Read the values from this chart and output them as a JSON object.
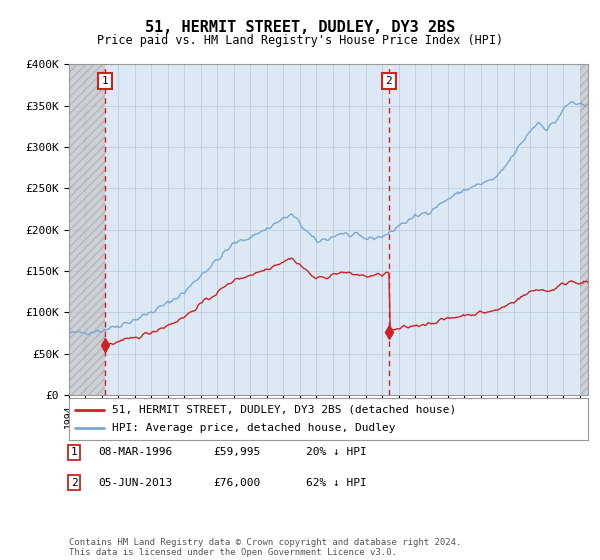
{
  "title": "51, HERMIT STREET, DUDLEY, DY3 2BS",
  "subtitle": "Price paid vs. HM Land Registry's House Price Index (HPI)",
  "footer": "Contains HM Land Registry data © Crown copyright and database right 2024.\nThis data is licensed under the Open Government Licence v3.0.",
  "legend_line1": "51, HERMIT STREET, DUDLEY, DY3 2BS (detached house)",
  "legend_line2": "HPI: Average price, detached house, Dudley",
  "annotation1_date": "08-MAR-1996",
  "annotation1_price": "£59,995",
  "annotation1_hpi": "20% ↓ HPI",
  "annotation2_date": "05-JUN-2013",
  "annotation2_price": "£76,000",
  "annotation2_hpi": "62% ↓ HPI",
  "hpi_color": "#7aa8d0",
  "price_color": "#cc2222",
  "background_plot": "#dce9f5",
  "hatch_color": "#c8c8c8",
  "grid_color": "#b8c8d8",
  "ann_box_color": "#cc2222",
  "ylim": [
    0,
    400000
  ],
  "yticks": [
    0,
    50000,
    100000,
    150000,
    200000,
    250000,
    300000,
    350000,
    400000
  ],
  "ytick_labels": [
    "£0",
    "£50K",
    "£100K",
    "£150K",
    "£200K",
    "£250K",
    "£300K",
    "£350K",
    "£400K"
  ],
  "xmin": 1994.0,
  "xmax": 2025.5,
  "hatch_xmax": 1996.18,
  "sale1_x": 1996.18,
  "sale1_y": 59995,
  "sale2_x": 2013.42,
  "sale2_y": 76000
}
